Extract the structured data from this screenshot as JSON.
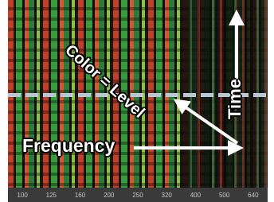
{
  "annotations": {
    "color": "Color = Level",
    "time": "Time",
    "frequency": "Frequency"
  },
  "axis": {
    "labels": [
      "100",
      "125",
      "160",
      "200",
      "250",
      "320",
      "400",
      "500",
      "640"
    ]
  }
}
